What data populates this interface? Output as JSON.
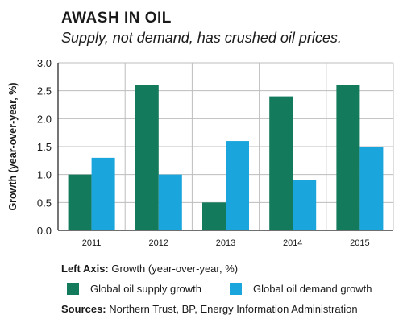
{
  "title": "AWASH IN OIL",
  "subtitle": "Supply, not demand, has crushed oil prices.",
  "footer": {
    "left_axis_label": "Left Axis:",
    "left_axis_text": "Growth (year-over-year, %)",
    "sources_label": "Sources:",
    "sources_text": "Northern Trust, BP, Energy Information Administration"
  },
  "colors": {
    "supply": "#137a5c",
    "demand": "#1aa6dc",
    "grid": "#bdbdbd",
    "axis": "#1a1a1a"
  },
  "chart_data": {
    "type": "bar",
    "title": "AWASH IN OIL",
    "subtitle": "Supply, not demand, has crushed oil prices.",
    "xlabel": "",
    "ylabel": "Growth (year-over-year, %)",
    "ylim": [
      0,
      3.0
    ],
    "yticks": [
      "0.0",
      "0.5",
      "1.0",
      "1.5",
      "2.0",
      "2.5",
      "3.0"
    ],
    "categories": [
      "2011",
      "2012",
      "2013",
      "2014",
      "2015"
    ],
    "series": [
      {
        "name": "Global oil supply growth",
        "values": [
          1.0,
          2.6,
          0.5,
          2.4,
          2.6
        ]
      },
      {
        "name": "Global oil demand growth",
        "values": [
          1.3,
          1.0,
          1.6,
          0.9,
          1.5
        ]
      }
    ],
    "grid": true,
    "legend": "bottom"
  }
}
